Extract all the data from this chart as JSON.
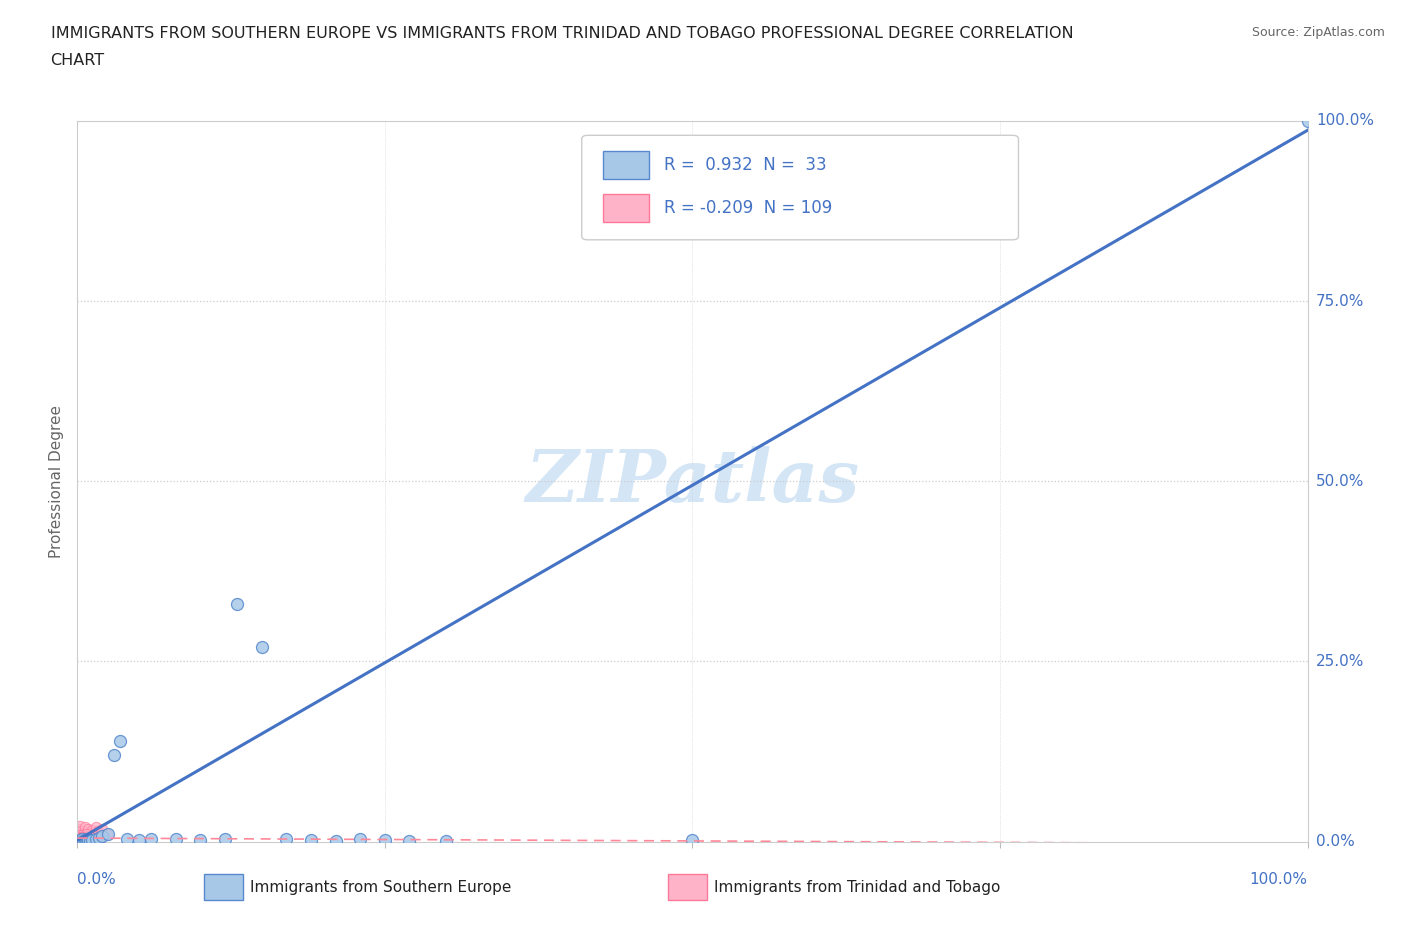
{
  "title_line1": "IMMIGRANTS FROM SOUTHERN EUROPE VS IMMIGRANTS FROM TRINIDAD AND TOBAGO PROFESSIONAL DEGREE CORRELATION",
  "title_line2": "CHART",
  "source": "Source: ZipAtlas.com",
  "ylabel": "Professional Degree",
  "series_blue": {
    "label": "Immigrants from Southern Europe",
    "R": 0.932,
    "N": 33,
    "fill_color": "#a8c8e8",
    "edge_color": "#5588cc",
    "x": [
      0.002,
      0.003,
      0.004,
      0.005,
      0.006,
      0.007,
      0.008,
      0.009,
      0.01,
      0.012,
      0.015,
      0.018,
      0.02,
      0.025,
      0.03,
      0.035,
      0.04,
      0.05,
      0.06,
      0.08,
      0.1,
      0.12,
      0.13,
      0.15,
      0.17,
      0.19,
      0.21,
      0.23,
      0.25,
      0.27,
      0.3,
      0.5,
      1.0
    ],
    "y": [
      0.002,
      0.001,
      0.003,
      0.001,
      0.002,
      0.001,
      0.003,
      0.002,
      0.001,
      0.002,
      0.003,
      0.005,
      0.008,
      0.01,
      0.12,
      0.14,
      0.003,
      0.002,
      0.004,
      0.003,
      0.002,
      0.003,
      0.33,
      0.27,
      0.003,
      0.002,
      0.001,
      0.003,
      0.002,
      0.001,
      0.001,
      0.002,
      1.0
    ]
  },
  "series_pink": {
    "label": "Immigrants from Trinidad and Tobago",
    "R": -0.209,
    "N": 109,
    "fill_color": "#ffb3c8",
    "edge_color": "#ff7799",
    "x": [
      0.001,
      0.002,
      0.003,
      0.004,
      0.005,
      0.006,
      0.007,
      0.008,
      0.009,
      0.01,
      0.011,
      0.012,
      0.013,
      0.014,
      0.015,
      0.016,
      0.017,
      0.018,
      0.019,
      0.02,
      0.022,
      0.024,
      0.001,
      0.002,
      0.003,
      0.004,
      0.005,
      0.006,
      0.007,
      0.008,
      0.001,
      0.002,
      0.003,
      0.004,
      0.005,
      0.001,
      0.002,
      0.003,
      0.001,
      0.002,
      0.001,
      0.002,
      0.003,
      0.001,
      0.002,
      0.001,
      0.002,
      0.001,
      0.002,
      0.001,
      0.002,
      0.001,
      0.001,
      0.002,
      0.001,
      0.001,
      0.002,
      0.001,
      0.001,
      0.002,
      0.001,
      0.001,
      0.002,
      0.001,
      0.001,
      0.002,
      0.001,
      0.001,
      0.002,
      0.001,
      0.001,
      0.001,
      0.002,
      0.001,
      0.001,
      0.001,
      0.002,
      0.001,
      0.001,
      0.001,
      0.002,
      0.001,
      0.001,
      0.001,
      0.001,
      0.002,
      0.001,
      0.001,
      0.001,
      0.001,
      0.002,
      0.001,
      0.001,
      0.001,
      0.001,
      0.001,
      0.002,
      0.001,
      0.001,
      0.001,
      0.001,
      0.001,
      0.001,
      0.001,
      0.001,
      0.001,
      0.001,
      0.001,
      0.001
    ],
    "y": [
      0.018,
      0.022,
      0.015,
      0.01,
      0.012,
      0.02,
      0.008,
      0.014,
      0.018,
      0.01,
      0.012,
      0.016,
      0.009,
      0.013,
      0.02,
      0.008,
      0.015,
      0.01,
      0.012,
      0.018,
      0.009,
      0.011,
      0.005,
      0.007,
      0.009,
      0.004,
      0.006,
      0.008,
      0.01,
      0.005,
      0.003,
      0.005,
      0.007,
      0.004,
      0.006,
      0.003,
      0.005,
      0.004,
      0.003,
      0.005,
      0.004,
      0.006,
      0.003,
      0.005,
      0.004,
      0.003,
      0.004,
      0.002,
      0.003,
      0.004,
      0.003,
      0.002,
      0.003,
      0.004,
      0.002,
      0.003,
      0.002,
      0.004,
      0.003,
      0.002,
      0.003,
      0.002,
      0.003,
      0.002,
      0.003,
      0.002,
      0.003,
      0.002,
      0.003,
      0.002,
      0.002,
      0.003,
      0.002,
      0.002,
      0.003,
      0.002,
      0.002,
      0.003,
      0.002,
      0.002,
      0.002,
      0.003,
      0.002,
      0.002,
      0.002,
      0.002,
      0.003,
      0.002,
      0.002,
      0.002,
      0.002,
      0.002,
      0.003,
      0.002,
      0.002,
      0.002,
      0.002,
      0.002,
      0.002,
      0.002,
      0.002,
      0.002,
      0.002,
      0.002,
      0.002,
      0.002,
      0.002,
      0.002,
      0.002
    ]
  },
  "reg_blue_slope": 0.985,
  "reg_blue_intercept": 0.002,
  "reg_pink_slope": -0.008,
  "reg_pink_intercept": 0.005,
  "blue_line_color": "#4472c4",
  "pink_line_color": "#ff8899",
  "xlim": [
    0.0,
    1.0
  ],
  "ylim": [
    0.0,
    1.0
  ],
  "ytick_vals": [
    0.0,
    0.25,
    0.5,
    0.75,
    1.0
  ],
  "ytick_labels": [
    "0.0%",
    "25.0%",
    "50.0%",
    "75.0%",
    "100.0%"
  ],
  "xtick_vals": [
    0.0,
    0.25,
    0.5,
    0.75,
    1.0
  ],
  "grid_color": "#cccccc",
  "bg_color": "#ffffff",
  "title_color": "#222222",
  "axis_label_color": "#666666",
  "tick_label_color": "#4472c4",
  "source_color": "#666666",
  "watermark_color": "#d0e4f5",
  "legend_text_color": "#4472c4"
}
